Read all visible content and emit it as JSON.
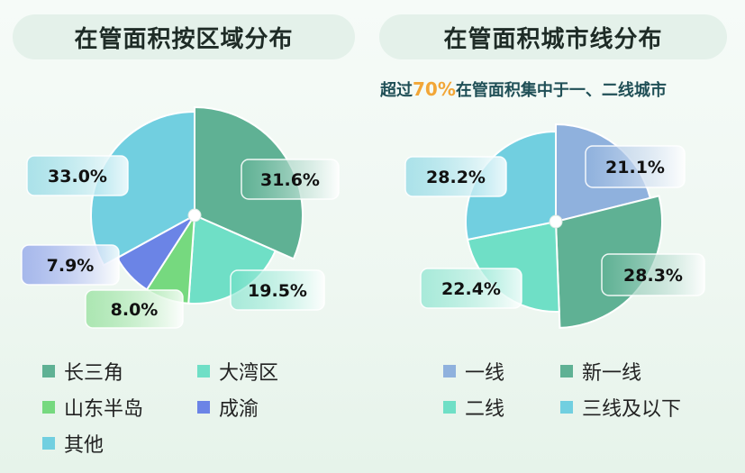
{
  "left_title": "在管面积按区域分布",
  "right_title": "在管面积城市线分布",
  "right_subtitle": {
    "prefix": "超过",
    "highlight": "70%",
    "suffix": "在管面积集中于一、二线城市"
  },
  "chart_data": [
    {
      "type": "pie",
      "title": "在管面积按区域分布",
      "slices": [
        {
          "label": "长三角",
          "value": 31.6,
          "display": "31.6%",
          "color": "#5fb194"
        },
        {
          "label": "大湾区",
          "value": 19.5,
          "display": "19.5%",
          "color": "#6fdfc6"
        },
        {
          "label": "山东半岛",
          "value": 8.0,
          "display": "8.0%",
          "color": "#76d97f"
        },
        {
          "label": "成渝",
          "value": 7.9,
          "display": "7.9%",
          "color": "#6b84e6"
        },
        {
          "label": "其他",
          "value": 33.0,
          "display": "33.0%",
          "color": "#71cfe0"
        }
      ],
      "legend_columns": 2
    },
    {
      "type": "pie",
      "title": "在管面积城市线分布",
      "slices": [
        {
          "label": "一线",
          "value": 21.1,
          "display": "21.1%",
          "color": "#8fb1dd"
        },
        {
          "label": "新一线",
          "value": 28.3,
          "display": "28.3%",
          "color": "#5fb194"
        },
        {
          "label": "二线",
          "value": 22.4,
          "display": "22.4%",
          "color": "#6fdfc6"
        },
        {
          "label": "三线及以下",
          "value": 28.2,
          "display": "28.2%",
          "color": "#71cfe0"
        }
      ],
      "legend_columns": 2
    }
  ]
}
